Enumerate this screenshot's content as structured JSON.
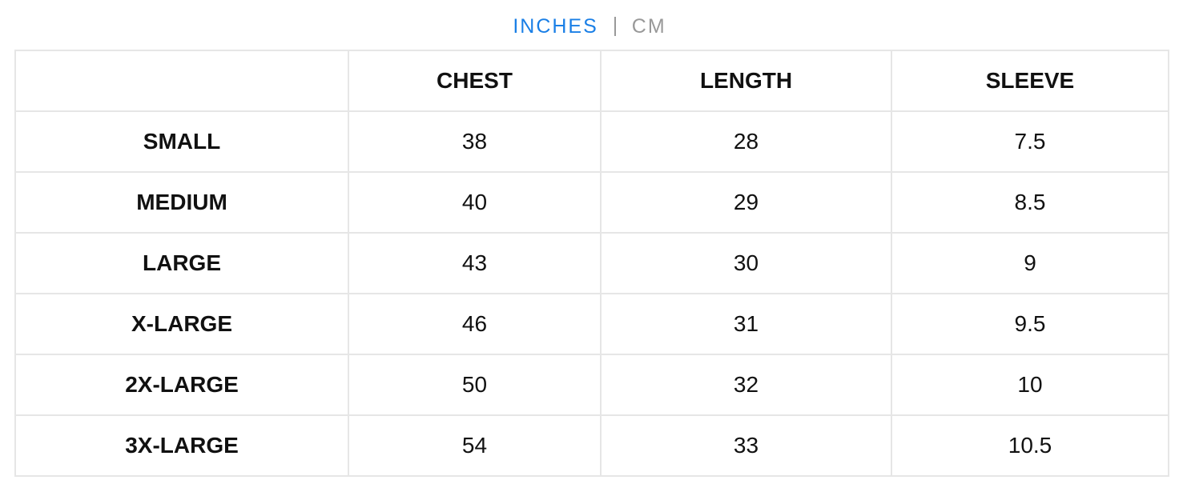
{
  "units": {
    "inches": "INCHES",
    "cm": "CM",
    "selected": "INCHES",
    "active_color": "#1a7fe6",
    "inactive_color": "#999999"
  },
  "table": {
    "headers": [
      "",
      "CHEST",
      "LENGTH",
      "SLEEVE"
    ],
    "rows": [
      {
        "size": "SMALL",
        "chest": "38",
        "length": "28",
        "sleeve": "7.5"
      },
      {
        "size": "MEDIUM",
        "chest": "40",
        "length": "29",
        "sleeve": "8.5"
      },
      {
        "size": "LARGE",
        "chest": "43",
        "length": "30",
        "sleeve": "9"
      },
      {
        "size": "X-LARGE",
        "chest": "46",
        "length": "31",
        "sleeve": "9.5"
      },
      {
        "size": "2X-LARGE",
        "chest": "50",
        "length": "32",
        "sleeve": "10"
      },
      {
        "size": "3X-LARGE",
        "chest": "54",
        "length": "33",
        "sleeve": "10.5"
      }
    ]
  }
}
